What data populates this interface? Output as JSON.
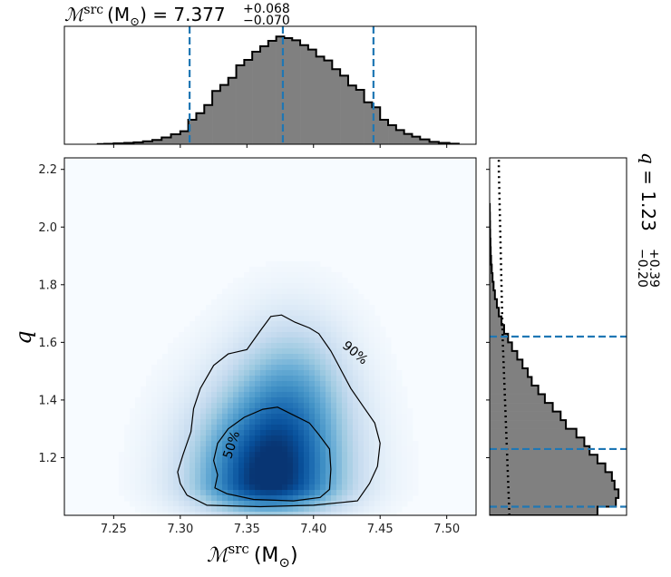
{
  "chart_data": [
    {
      "type": "histogram",
      "panel": "top marginal",
      "variable": "chirp mass",
      "title": {
        "prefix": "ℳ",
        "sup": "src",
        "unit": "(M",
        "unit_sub": "⊙",
        "unit_close": ")",
        "equals": " = 7.377",
        "plus": "+0.068",
        "minus": "−0.070"
      },
      "median": 7.377,
      "credible_bounds": [
        7.307,
        7.445
      ],
      "xlim": [
        7.213,
        7.522
      ],
      "bins": [
        [
          7.238,
          0.002
        ],
        [
          7.243,
          0.004
        ],
        [
          7.25,
          0.008
        ],
        [
          7.258,
          0.012
        ],
        [
          7.265,
          0.018
        ],
        [
          7.272,
          0.027
        ],
        [
          7.279,
          0.04
        ],
        [
          7.286,
          0.062
        ],
        [
          7.293,
          0.092
        ],
        [
          7.3,
          0.12
        ],
        [
          7.306,
          0.225
        ],
        [
          7.312,
          0.285
        ],
        [
          7.318,
          0.36
        ],
        [
          7.324,
          0.49
        ],
        [
          7.33,
          0.545
        ],
        [
          7.336,
          0.61
        ],
        [
          7.342,
          0.725
        ],
        [
          7.348,
          0.775
        ],
        [
          7.354,
          0.85
        ],
        [
          7.36,
          0.9
        ],
        [
          7.366,
          0.95
        ],
        [
          7.372,
          0.99
        ],
        [
          7.378,
          0.975
        ],
        [
          7.384,
          0.955
        ],
        [
          7.39,
          0.91
        ],
        [
          7.396,
          0.87
        ],
        [
          7.402,
          0.805
        ],
        [
          7.408,
          0.77
        ],
        [
          7.414,
          0.69
        ],
        [
          7.42,
          0.63
        ],
        [
          7.426,
          0.54
        ],
        [
          7.432,
          0.5
        ],
        [
          7.438,
          0.385
        ],
        [
          7.444,
          0.34
        ],
        [
          7.45,
          0.225
        ],
        [
          7.456,
          0.175
        ],
        [
          7.462,
          0.13
        ],
        [
          7.468,
          0.095
        ],
        [
          7.474,
          0.07
        ],
        [
          7.48,
          0.045
        ],
        [
          7.487,
          0.022
        ],
        [
          7.494,
          0.012
        ],
        [
          7.502,
          0.005
        ]
      ],
      "color": "#808080",
      "line_color": "#1f77b4"
    },
    {
      "type": "heatmap",
      "panel": "joint density",
      "xlabel": {
        "prefix": "ℳ",
        "sup": "src",
        "unit": "(M",
        "unit_sub": "⊙",
        "unit_close": ")"
      },
      "ylabel": "q",
      "xlim": [
        7.213,
        7.522
      ],
      "ylim": [
        1.0,
        2.24
      ],
      "x_ticks": [
        "7.25",
        "7.30",
        "7.35",
        "7.40",
        "7.45",
        "7.50"
      ],
      "y_ticks": [
        "1.2",
        "1.4",
        "1.6",
        "1.8",
        "2.0",
        "2.2"
      ],
      "density_peak": [
        7.366,
        1.115
      ],
      "colormap": "Blues",
      "contours": [
        {
          "label": "50%",
          "points": [
            [
              7.328,
              1.14
            ],
            [
              7.326,
              1.095
            ],
            [
              7.335,
              1.075
            ],
            [
              7.355,
              1.055
            ],
            [
              7.385,
              1.05
            ],
            [
              7.405,
              1.062
            ],
            [
              7.412,
              1.09
            ],
            [
              7.413,
              1.16
            ],
            [
              7.412,
              1.23
            ],
            [
              7.404,
              1.28
            ],
            [
              7.397,
              1.32
            ],
            [
              7.384,
              1.35
            ],
            [
              7.373,
              1.375
            ],
            [
              7.362,
              1.368
            ],
            [
              7.348,
              1.34
            ],
            [
              7.336,
              1.3
            ],
            [
              7.328,
              1.25
            ],
            [
              7.325,
              1.19
            ],
            [
              7.328,
              1.14
            ]
          ]
        },
        {
          "label": "90%",
          "points": [
            [
              7.305,
              1.07
            ],
            [
              7.3,
              1.11
            ],
            [
              7.298,
              1.15
            ],
            [
              7.302,
              1.21
            ],
            [
              7.308,
              1.29
            ],
            [
              7.31,
              1.37
            ],
            [
              7.315,
              1.44
            ],
            [
              7.325,
              1.52
            ],
            [
              7.336,
              1.56
            ],
            [
              7.35,
              1.575
            ],
            [
              7.36,
              1.64
            ],
            [
              7.368,
              1.69
            ],
            [
              7.376,
              1.695
            ],
            [
              7.386,
              1.67
            ],
            [
              7.397,
              1.65
            ],
            [
              7.404,
              1.63
            ],
            [
              7.413,
              1.57
            ],
            [
              7.42,
              1.51
            ],
            [
              7.428,
              1.44
            ],
            [
              7.437,
              1.38
            ],
            [
              7.446,
              1.32
            ],
            [
              7.45,
              1.25
            ],
            [
              7.448,
              1.17
            ],
            [
              7.442,
              1.11
            ],
            [
              7.433,
              1.05
            ],
            [
              7.4,
              1.035
            ],
            [
              7.36,
              1.03
            ],
            [
              7.32,
              1.035
            ],
            [
              7.305,
              1.07
            ]
          ]
        }
      ]
    },
    {
      "type": "histogram",
      "panel": "right marginal",
      "orientation": "horizontal",
      "variable": "q",
      "title": {
        "prefix": "q",
        "equals": " = 1.23",
        "plus": "+0.39",
        "minus": "−0.20"
      },
      "median": 1.23,
      "credible_bounds": [
        1.03,
        1.62
      ],
      "ylim": [
        1.0,
        2.24
      ],
      "bins": [
        [
          1.0,
          0.82
        ],
        [
          1.03,
          0.96
        ],
        [
          1.06,
          0.98
        ],
        [
          1.09,
          0.95
        ],
        [
          1.12,
          0.93
        ],
        [
          1.15,
          0.88
        ],
        [
          1.18,
          0.82
        ],
        [
          1.21,
          0.76
        ],
        [
          1.24,
          0.72
        ],
        [
          1.27,
          0.66
        ],
        [
          1.3,
          0.58
        ],
        [
          1.33,
          0.54
        ],
        [
          1.36,
          0.48
        ],
        [
          1.39,
          0.42
        ],
        [
          1.42,
          0.37
        ],
        [
          1.45,
          0.32
        ],
        [
          1.48,
          0.29
        ],
        [
          1.51,
          0.25
        ],
        [
          1.54,
          0.21
        ],
        [
          1.57,
          0.17
        ],
        [
          1.6,
          0.14
        ],
        [
          1.63,
          0.11
        ],
        [
          1.66,
          0.09
        ],
        [
          1.69,
          0.07
        ],
        [
          1.72,
          0.055
        ],
        [
          1.75,
          0.04
        ],
        [
          1.78,
          0.03
        ],
        [
          1.81,
          0.022
        ],
        [
          1.84,
          0.016
        ],
        [
          1.87,
          0.011
        ],
        [
          1.9,
          0.008
        ],
        [
          1.93,
          0.006
        ],
        [
          1.96,
          0.004
        ],
        [
          1.99,
          0.003
        ],
        [
          2.02,
          0.002
        ],
        [
          2.05,
          0.001
        ]
      ],
      "prior_line": [
        [
          1.0,
          0.15
        ],
        [
          1.6,
          0.1
        ],
        [
          2.2,
          0.07
        ]
      ],
      "color": "#808080",
      "line_color": "#1f77b4"
    }
  ]
}
